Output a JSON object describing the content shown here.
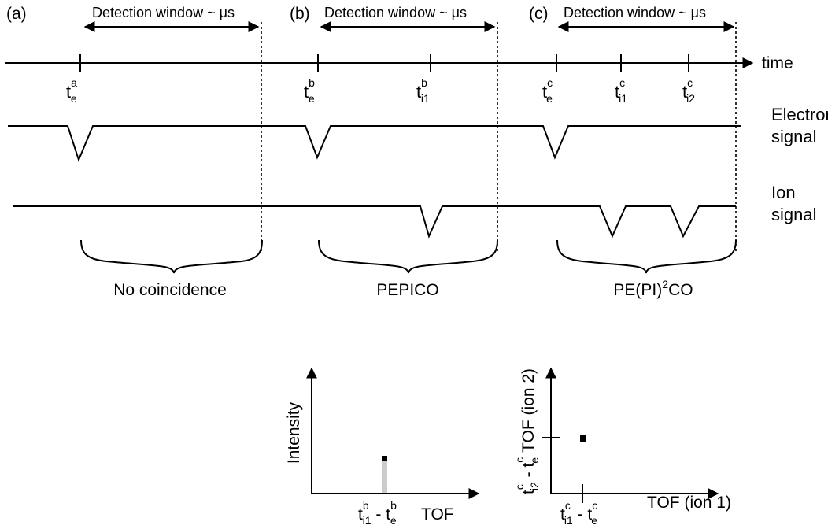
{
  "panels": [
    {
      "tag": "(a)",
      "window_label": "Detection window ~ μs",
      "outcome": "No coincidence",
      "markers": [
        {
          "base": "t",
          "sup": "a",
          "sub": "e"
        }
      ]
    },
    {
      "tag": "(b)",
      "window_label": "Detection window ~ μs",
      "outcome": "PEPICO",
      "markers": [
        {
          "base": "t",
          "sup": "b",
          "sub": "e"
        },
        {
          "base": "t",
          "sup": "b",
          "sub": "i1"
        }
      ]
    },
    {
      "tag": "(c)",
      "window_label": "Detection window ~ μs",
      "outcome_main": "PE(PI)",
      "outcome_sup": "2",
      "outcome_end": "CO",
      "markers": [
        {
          "base": "t",
          "sup": "c",
          "sub": "e"
        },
        {
          "base": "t",
          "sup": "c",
          "sub": "i1"
        },
        {
          "base": "t",
          "sup": "c",
          "sub": "i2"
        }
      ]
    }
  ],
  "time_axis_label": "time",
  "electron_signal": [
    "Electron",
    "signal"
  ],
  "ion_signal": [
    "Ion",
    "signal"
  ],
  "plot1": {
    "ylabel": "Intensity",
    "xlabel": "TOF",
    "tick": {
      "a_base": "t",
      "a_sup": "b",
      "a_sub": "i1",
      "sep": " - ",
      "b_base": "t",
      "b_sup": "b",
      "b_sub": "e"
    }
  },
  "plot2": {
    "ylabel_tof": "TOF (ion 2)",
    "ytick": {
      "a_base": "t",
      "a_sup": "c",
      "a_sub": "i2",
      "sep": " - ",
      "b_base": "t",
      "b_sup": "c",
      "b_sub": "e"
    },
    "xlabel": "TOF (ion 1)",
    "xtick": {
      "a_base": "t",
      "a_sup": "c",
      "a_sub": "i1",
      "sep": " - ",
      "b_base": "t",
      "b_sup": "c",
      "b_sub": "e"
    }
  }
}
